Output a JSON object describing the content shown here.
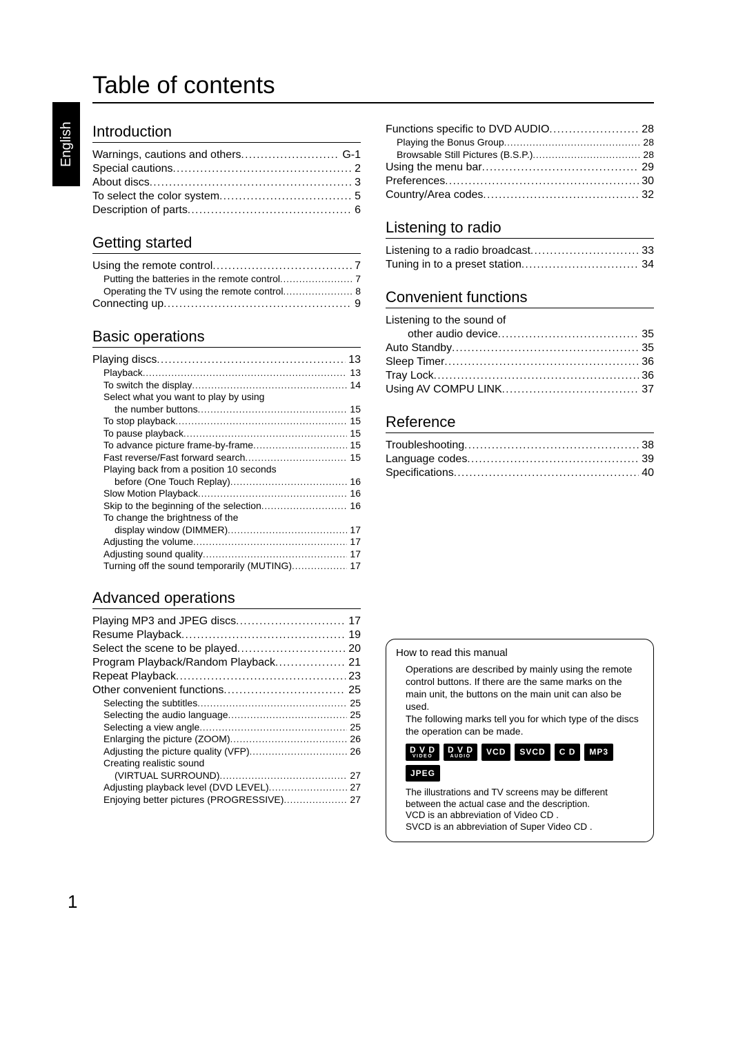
{
  "language_tab": "English",
  "page_title": "Table of contents",
  "page_number": "1",
  "leftSections": [
    {
      "title": "Introduction",
      "rows": [
        {
          "label": "Warnings, cautions and others",
          "page": "G-1",
          "sub": false
        },
        {
          "label": "Special cautions",
          "page": "2",
          "sub": false
        },
        {
          "label": "About discs",
          "page": "3",
          "sub": false
        },
        {
          "label": "To select the color system",
          "page": "5",
          "sub": false
        },
        {
          "label": "Description of parts",
          "page": "6",
          "sub": false
        }
      ]
    },
    {
      "title": "Getting started",
      "rows": [
        {
          "label": "Using the remote control",
          "page": "7",
          "sub": false
        },
        {
          "label": "Putting the batteries in the remote control",
          "page": "7",
          "sub": true
        },
        {
          "label": "Operating the TV using the remote control",
          "page": "8",
          "sub": true
        },
        {
          "label": "Connecting up",
          "page": "9",
          "sub": false
        }
      ]
    },
    {
      "title": "Basic operations",
      "rows": [
        {
          "label": "Playing discs",
          "page": "13",
          "sub": false
        },
        {
          "label": "Playback",
          "page": "13",
          "sub": true
        },
        {
          "label": "To switch the display",
          "page": "14",
          "sub": true
        },
        {
          "wrapHead": "Select what you want to play by using",
          "label": "the number buttons",
          "page": "15",
          "sub": true
        },
        {
          "label": "To stop playback",
          "page": "15",
          "sub": true
        },
        {
          "label": "To pause playback",
          "page": "15",
          "sub": true
        },
        {
          "label": "To advance picture frame-by-frame",
          "page": "15",
          "sub": true
        },
        {
          "label": "Fast reverse/Fast forward search",
          "page": "15",
          "sub": true
        },
        {
          "wrapHead": "Playing back from a position 10 seconds",
          "label": "before (One Touch Replay)",
          "page": "16",
          "sub": true
        },
        {
          "label": "Slow Motion Playback",
          "page": "16",
          "sub": true
        },
        {
          "label": "Skip to the beginning of the selection",
          "page": "16",
          "sub": true
        },
        {
          "wrapHead": "To change the brightness of the",
          "label": "display window (DIMMER)",
          "page": "17",
          "sub": true
        },
        {
          "label": "Adjusting the volume",
          "page": "17",
          "sub": true
        },
        {
          "label": "Adjusting sound quality",
          "page": "17",
          "sub": true
        },
        {
          "label": "Turning off the sound temporarily (MUTING)",
          "page": "17",
          "sub": true
        }
      ]
    },
    {
      "title": "Advanced operations",
      "rows": [
        {
          "label": "Playing MP3 and JPEG discs",
          "page": "17",
          "sub": false
        },
        {
          "label": "Resume Playback",
          "page": "19",
          "sub": false
        },
        {
          "label": "Select the scene to be played",
          "page": "20",
          "sub": false
        },
        {
          "label": "Program Playback/Random Playback",
          "page": "21",
          "sub": false
        },
        {
          "label": "Repeat Playback",
          "page": "23",
          "sub": false
        },
        {
          "label": "Other convenient functions",
          "page": "25",
          "sub": false
        },
        {
          "label": "Selecting the subtitles",
          "page": "25",
          "sub": true
        },
        {
          "label": "Selecting the audio language",
          "page": "25",
          "sub": true
        },
        {
          "label": "Selecting a view angle",
          "page": "25",
          "sub": true
        },
        {
          "label": "Enlarging the picture (ZOOM)",
          "page": "26",
          "sub": true
        },
        {
          "label": "Adjusting the picture quality (VFP)",
          "page": "26",
          "sub": true
        },
        {
          "wrapHead": "Creating realistic sound",
          "label": "(VIRTUAL SURROUND)",
          "page": "27",
          "sub": true
        },
        {
          "label": "Adjusting playback level (DVD LEVEL)",
          "page": "27",
          "sub": true
        },
        {
          "label": "Enjoying better pictures (PROGRESSIVE)",
          "page": "27",
          "sub": true
        }
      ]
    }
  ],
  "rightSections": [
    {
      "title": "",
      "rows": [
        {
          "label": "Functions specific to DVD AUDIO",
          "page": "28",
          "sub": false
        },
        {
          "label": "Playing the Bonus Group",
          "page": "28",
          "sub": true
        },
        {
          "label": "Browsable Still Pictures (B.S.P.)",
          "page": "28",
          "sub": true
        },
        {
          "label": "Using the menu bar",
          "page": "29",
          "sub": false
        },
        {
          "label": "Preferences",
          "page": "30",
          "sub": false
        },
        {
          "label": "Country/Area codes",
          "page": "32",
          "sub": false
        }
      ]
    },
    {
      "title": "Listening to radio",
      "rows": [
        {
          "label": "Listening to a radio broadcast",
          "page": "33",
          "sub": false
        },
        {
          "label": "Tuning in to a preset station",
          "page": "34",
          "sub": false
        }
      ]
    },
    {
      "title": "Convenient functions",
      "rows": [
        {
          "wrapHead": "Listening to the sound of",
          "label": "other audio device",
          "page": "35",
          "sub": false,
          "wrapSubFalse": true
        },
        {
          "label": "Auto Standby",
          "page": "35",
          "sub": false
        },
        {
          "label": "Sleep Timer",
          "page": "36",
          "sub": false
        },
        {
          "label": "Tray Lock",
          "page": "36",
          "sub": false
        },
        {
          "label": "Using AV COMPU LINK",
          "page": "37",
          "sub": false
        }
      ]
    },
    {
      "title": "Reference",
      "rows": [
        {
          "label": "Troubleshooting",
          "page": "38",
          "sub": false
        },
        {
          "label": "Language codes",
          "page": "39",
          "sub": false
        },
        {
          "label": "Specifications",
          "page": "40",
          "sub": false
        }
      ]
    }
  ],
  "info": {
    "title": "How to read this manual",
    "p1": "Operations are described by mainly using the remote control buttons. If there are the same marks on the main unit, the buttons on the main unit can also be used.",
    "p2": "The following marks tell you for which type of the discs the operation can be made.",
    "badges": [
      {
        "top": "D V D",
        "sub": "VIDEO"
      },
      {
        "top": "D V D",
        "sub": "AUDIO"
      },
      {
        "top": "VCD"
      },
      {
        "top": "SVCD"
      },
      {
        "top": "C D"
      },
      {
        "top": "MP3"
      },
      {
        "top": "JPEG"
      }
    ],
    "p3": "The illustrations and TV screens may be different between the actual case and the description.",
    "p4": " VCD  is an abbreviation of  Video CD .",
    "p5": " SVCD  is an abbreviation of  Super Video CD ."
  }
}
